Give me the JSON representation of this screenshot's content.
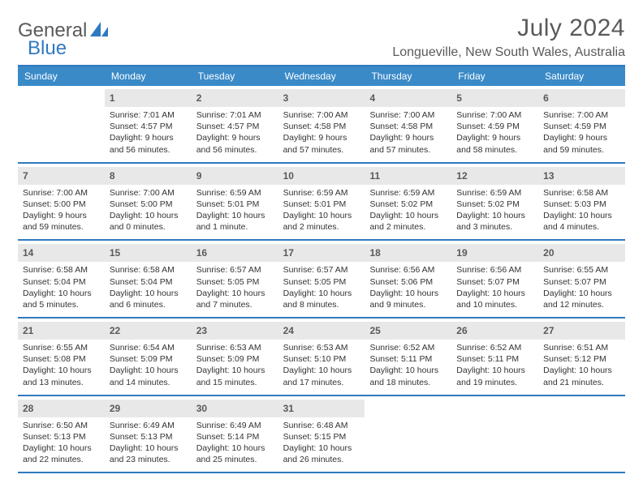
{
  "logo": {
    "textA": "General",
    "textB": "Blue"
  },
  "title": "July 2024",
  "location": "Longueville, New South Wales, Australia",
  "colors": {
    "accent": "#2f7abf",
    "header_bg": "#3a8ac8",
    "header_text": "#ffffff",
    "daynum_bg": "#e8e8e8",
    "text": "#333333",
    "muted": "#5a5a5a"
  },
  "weekday_headers": [
    "Sunday",
    "Monday",
    "Tuesday",
    "Wednesday",
    "Thursday",
    "Friday",
    "Saturday"
  ],
  "weeks": [
    [
      {
        "empty": true
      },
      {
        "num": "1",
        "sunrise": "Sunrise: 7:01 AM",
        "sunset": "Sunset: 4:57 PM",
        "day1": "Daylight: 9 hours",
        "day2": "and 56 minutes."
      },
      {
        "num": "2",
        "sunrise": "Sunrise: 7:01 AM",
        "sunset": "Sunset: 4:57 PM",
        "day1": "Daylight: 9 hours",
        "day2": "and 56 minutes."
      },
      {
        "num": "3",
        "sunrise": "Sunrise: 7:00 AM",
        "sunset": "Sunset: 4:58 PM",
        "day1": "Daylight: 9 hours",
        "day2": "and 57 minutes."
      },
      {
        "num": "4",
        "sunrise": "Sunrise: 7:00 AM",
        "sunset": "Sunset: 4:58 PM",
        "day1": "Daylight: 9 hours",
        "day2": "and 57 minutes."
      },
      {
        "num": "5",
        "sunrise": "Sunrise: 7:00 AM",
        "sunset": "Sunset: 4:59 PM",
        "day1": "Daylight: 9 hours",
        "day2": "and 58 minutes."
      },
      {
        "num": "6",
        "sunrise": "Sunrise: 7:00 AM",
        "sunset": "Sunset: 4:59 PM",
        "day1": "Daylight: 9 hours",
        "day2": "and 59 minutes."
      }
    ],
    [
      {
        "num": "7",
        "sunrise": "Sunrise: 7:00 AM",
        "sunset": "Sunset: 5:00 PM",
        "day1": "Daylight: 9 hours",
        "day2": "and 59 minutes."
      },
      {
        "num": "8",
        "sunrise": "Sunrise: 7:00 AM",
        "sunset": "Sunset: 5:00 PM",
        "day1": "Daylight: 10 hours",
        "day2": "and 0 minutes."
      },
      {
        "num": "9",
        "sunrise": "Sunrise: 6:59 AM",
        "sunset": "Sunset: 5:01 PM",
        "day1": "Daylight: 10 hours",
        "day2": "and 1 minute."
      },
      {
        "num": "10",
        "sunrise": "Sunrise: 6:59 AM",
        "sunset": "Sunset: 5:01 PM",
        "day1": "Daylight: 10 hours",
        "day2": "and 2 minutes."
      },
      {
        "num": "11",
        "sunrise": "Sunrise: 6:59 AM",
        "sunset": "Sunset: 5:02 PM",
        "day1": "Daylight: 10 hours",
        "day2": "and 2 minutes."
      },
      {
        "num": "12",
        "sunrise": "Sunrise: 6:59 AM",
        "sunset": "Sunset: 5:02 PM",
        "day1": "Daylight: 10 hours",
        "day2": "and 3 minutes."
      },
      {
        "num": "13",
        "sunrise": "Sunrise: 6:58 AM",
        "sunset": "Sunset: 5:03 PM",
        "day1": "Daylight: 10 hours",
        "day2": "and 4 minutes."
      }
    ],
    [
      {
        "num": "14",
        "sunrise": "Sunrise: 6:58 AM",
        "sunset": "Sunset: 5:04 PM",
        "day1": "Daylight: 10 hours",
        "day2": "and 5 minutes."
      },
      {
        "num": "15",
        "sunrise": "Sunrise: 6:58 AM",
        "sunset": "Sunset: 5:04 PM",
        "day1": "Daylight: 10 hours",
        "day2": "and 6 minutes."
      },
      {
        "num": "16",
        "sunrise": "Sunrise: 6:57 AM",
        "sunset": "Sunset: 5:05 PM",
        "day1": "Daylight: 10 hours",
        "day2": "and 7 minutes."
      },
      {
        "num": "17",
        "sunrise": "Sunrise: 6:57 AM",
        "sunset": "Sunset: 5:05 PM",
        "day1": "Daylight: 10 hours",
        "day2": "and 8 minutes."
      },
      {
        "num": "18",
        "sunrise": "Sunrise: 6:56 AM",
        "sunset": "Sunset: 5:06 PM",
        "day1": "Daylight: 10 hours",
        "day2": "and 9 minutes."
      },
      {
        "num": "19",
        "sunrise": "Sunrise: 6:56 AM",
        "sunset": "Sunset: 5:07 PM",
        "day1": "Daylight: 10 hours",
        "day2": "and 10 minutes."
      },
      {
        "num": "20",
        "sunrise": "Sunrise: 6:55 AM",
        "sunset": "Sunset: 5:07 PM",
        "day1": "Daylight: 10 hours",
        "day2": "and 12 minutes."
      }
    ],
    [
      {
        "num": "21",
        "sunrise": "Sunrise: 6:55 AM",
        "sunset": "Sunset: 5:08 PM",
        "day1": "Daylight: 10 hours",
        "day2": "and 13 minutes."
      },
      {
        "num": "22",
        "sunrise": "Sunrise: 6:54 AM",
        "sunset": "Sunset: 5:09 PM",
        "day1": "Daylight: 10 hours",
        "day2": "and 14 minutes."
      },
      {
        "num": "23",
        "sunrise": "Sunrise: 6:53 AM",
        "sunset": "Sunset: 5:09 PM",
        "day1": "Daylight: 10 hours",
        "day2": "and 15 minutes."
      },
      {
        "num": "24",
        "sunrise": "Sunrise: 6:53 AM",
        "sunset": "Sunset: 5:10 PM",
        "day1": "Daylight: 10 hours",
        "day2": "and 17 minutes."
      },
      {
        "num": "25",
        "sunrise": "Sunrise: 6:52 AM",
        "sunset": "Sunset: 5:11 PM",
        "day1": "Daylight: 10 hours",
        "day2": "and 18 minutes."
      },
      {
        "num": "26",
        "sunrise": "Sunrise: 6:52 AM",
        "sunset": "Sunset: 5:11 PM",
        "day1": "Daylight: 10 hours",
        "day2": "and 19 minutes."
      },
      {
        "num": "27",
        "sunrise": "Sunrise: 6:51 AM",
        "sunset": "Sunset: 5:12 PM",
        "day1": "Daylight: 10 hours",
        "day2": "and 21 minutes."
      }
    ],
    [
      {
        "num": "28",
        "sunrise": "Sunrise: 6:50 AM",
        "sunset": "Sunset: 5:13 PM",
        "day1": "Daylight: 10 hours",
        "day2": "and 22 minutes."
      },
      {
        "num": "29",
        "sunrise": "Sunrise: 6:49 AM",
        "sunset": "Sunset: 5:13 PM",
        "day1": "Daylight: 10 hours",
        "day2": "and 23 minutes."
      },
      {
        "num": "30",
        "sunrise": "Sunrise: 6:49 AM",
        "sunset": "Sunset: 5:14 PM",
        "day1": "Daylight: 10 hours",
        "day2": "and 25 minutes."
      },
      {
        "num": "31",
        "sunrise": "Sunrise: 6:48 AM",
        "sunset": "Sunset: 5:15 PM",
        "day1": "Daylight: 10 hours",
        "day2": "and 26 minutes."
      },
      {
        "empty": true
      },
      {
        "empty": true
      },
      {
        "empty": true
      }
    ]
  ]
}
